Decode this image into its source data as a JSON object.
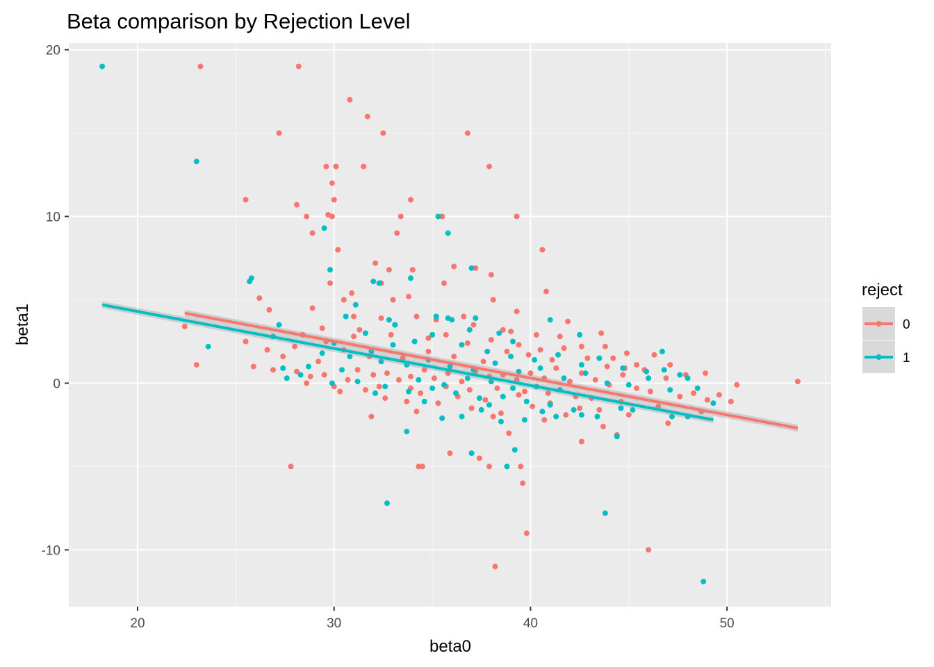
{
  "chart_data": {
    "type": "scatter",
    "title": "Beta comparison by Rejection Level",
    "xlabel": "beta0",
    "ylabel": "beta1",
    "xlim": [
      16.5,
      55.3
    ],
    "ylim": [
      -13.4,
      20.4
    ],
    "x_ticks": [
      20,
      30,
      40,
      50
    ],
    "y_ticks": [
      -10,
      0,
      10,
      20
    ],
    "x_tick_labels": [
      "20",
      "30",
      "40",
      "50"
    ],
    "y_tick_labels": [
      "-10",
      "0",
      "10",
      "20"
    ],
    "grid": true,
    "panel_background": "#ebebeb",
    "legend": {
      "title": "reject",
      "position": "right",
      "entries": [
        "0",
        "1"
      ]
    },
    "series": [
      {
        "name": "0",
        "color": "#F8766D",
        "trend": {
          "x": [
            22.4,
            53.6
          ],
          "y": [
            4.2,
            -2.7
          ]
        },
        "points": [
          [
            23.2,
            19.0
          ],
          [
            28.2,
            19.0
          ],
          [
            30.8,
            17.0
          ],
          [
            31.7,
            16.0
          ],
          [
            27.2,
            15.0
          ],
          [
            32.5,
            15.0
          ],
          [
            36.8,
            15.0
          ],
          [
            29.6,
            13.0
          ],
          [
            30.1,
            13.0
          ],
          [
            31.5,
            13.0
          ],
          [
            37.9,
            13.0
          ],
          [
            29.9,
            12.0
          ],
          [
            30.0,
            11.0
          ],
          [
            25.5,
            11.0
          ],
          [
            33.9,
            11.0
          ],
          [
            28.1,
            10.7
          ],
          [
            29.7,
            10.1
          ],
          [
            28.6,
            10.0
          ],
          [
            29.9,
            10.0
          ],
          [
            33.4,
            10.0
          ],
          [
            35.5,
            10.0
          ],
          [
            39.3,
            10.0
          ],
          [
            28.9,
            9.0
          ],
          [
            33.2,
            9.0
          ],
          [
            30.2,
            8.0
          ],
          [
            40.6,
            8.0
          ],
          [
            36.1,
            7.0
          ],
          [
            32.1,
            7.2
          ],
          [
            37.2,
            6.9
          ],
          [
            34.0,
            6.8
          ],
          [
            32.8,
            6.8
          ],
          [
            29.8,
            6.0
          ],
          [
            32.4,
            6.0
          ],
          [
            35.6,
            6.0
          ],
          [
            38.0,
            6.5
          ],
          [
            40.8,
            5.5
          ],
          [
            30.9,
            5.4
          ],
          [
            33.0,
            5.0
          ],
          [
            33.8,
            5.2
          ],
          [
            38.1,
            5.0
          ],
          [
            26.2,
            5.1
          ],
          [
            30.5,
            5.0
          ],
          [
            28.9,
            4.5
          ],
          [
            26.7,
            4.4
          ],
          [
            39.3,
            4.3
          ],
          [
            32.4,
            3.9
          ],
          [
            36.6,
            4.0
          ],
          [
            41.9,
            3.7
          ],
          [
            35.2,
            3.8
          ],
          [
            34.2,
            4.0
          ],
          [
            37.1,
            3.5
          ],
          [
            39.0,
            3.1
          ],
          [
            40.3,
            2.9
          ],
          [
            43.6,
            3.0
          ],
          [
            29.4,
            3.3
          ],
          [
            31.3,
            3.2
          ],
          [
            28.4,
            2.9
          ],
          [
            35.7,
            2.9
          ],
          [
            38.6,
            3.2
          ],
          [
            41.5,
            2.8
          ],
          [
            22.4,
            3.4
          ],
          [
            25.5,
            2.5
          ],
          [
            44.9,
            1.8
          ],
          [
            26.6,
            2.0
          ],
          [
            42.6,
            2.2
          ],
          [
            43.8,
            2.2
          ],
          [
            46.3,
            1.7
          ],
          [
            44.2,
            1.5
          ],
          [
            47.1,
            1.1
          ],
          [
            45.4,
            1.1
          ],
          [
            44.8,
            0.9
          ],
          [
            25.9,
            1.0
          ],
          [
            23.0,
            1.1
          ],
          [
            26.9,
            0.8
          ],
          [
            28.1,
            0.7
          ],
          [
            30.7,
            0.2
          ],
          [
            28.8,
            0.4
          ],
          [
            29.5,
            0.5
          ],
          [
            31.2,
            0.8
          ],
          [
            32.0,
            0.5
          ],
          [
            32.7,
            0.6
          ],
          [
            33.3,
            0.2
          ],
          [
            33.9,
            0.4
          ],
          [
            34.6,
            0.8
          ],
          [
            35.1,
            0.3
          ],
          [
            35.8,
            0.6
          ],
          [
            36.5,
            0.1
          ],
          [
            37.2,
            0.7
          ],
          [
            37.9,
            0.4
          ],
          [
            38.6,
            0.5
          ],
          [
            39.3,
            0.2
          ],
          [
            40.0,
            0.6
          ],
          [
            40.7,
            0.3
          ],
          [
            41.3,
            0.9
          ],
          [
            42.0,
            0.1
          ],
          [
            42.6,
            0.6
          ],
          [
            43.3,
            0.2
          ],
          [
            44.0,
            -0.1
          ],
          [
            44.7,
            0.5
          ],
          [
            45.4,
            -0.3
          ],
          [
            46.1,
            -0.5
          ],
          [
            46.9,
            0.3
          ],
          [
            47.6,
            -0.8
          ],
          [
            48.3,
            -0.6
          ],
          [
            49.0,
            -1.0
          ],
          [
            49.6,
            -0.7
          ],
          [
            50.2,
            -1.1
          ],
          [
            50.5,
            -0.1
          ],
          [
            53.6,
            0.1
          ],
          [
            31.6,
            -0.4
          ],
          [
            32.6,
            -0.9
          ],
          [
            33.7,
            -1.1
          ],
          [
            34.4,
            -0.6
          ],
          [
            35.3,
            -1.2
          ],
          [
            36.3,
            -0.8
          ],
          [
            37.0,
            -1.5
          ],
          [
            37.7,
            -1.0
          ],
          [
            38.5,
            -1.8
          ],
          [
            39.4,
            -0.7
          ],
          [
            40.1,
            -1.4
          ],
          [
            41.0,
            -1.2
          ],
          [
            41.8,
            -1.9
          ],
          [
            42.5,
            -1.5
          ],
          [
            43.5,
            -1.6
          ],
          [
            45.0,
            -1.9
          ],
          [
            47.0,
            -2.4
          ],
          [
            30.3,
            -0.5
          ],
          [
            31.9,
            -2.0
          ],
          [
            34.2,
            -1.7
          ],
          [
            35.5,
            -2.1
          ],
          [
            38.1,
            -2.0
          ],
          [
            38.9,
            -3.0
          ],
          [
            42.6,
            -3.5
          ],
          [
            40.7,
            -2.2
          ],
          [
            43.7,
            -2.6
          ],
          [
            44.4,
            -3.1
          ],
          [
            27.8,
            -5.0
          ],
          [
            34.3,
            -5.0
          ],
          [
            37.9,
            -5.0
          ],
          [
            39.5,
            -5.0
          ],
          [
            34.5,
            -5.0
          ],
          [
            39.6,
            -6.0
          ],
          [
            39.8,
            -9.0
          ],
          [
            38.2,
            -11.0
          ],
          [
            46.0,
            -10.0
          ],
          [
            35.9,
            -4.2
          ],
          [
            37.4,
            -4.5
          ],
          [
            33.5,
            1.5
          ],
          [
            34.8,
            1.9
          ],
          [
            36.1,
            1.6
          ],
          [
            37.6,
            1.3
          ],
          [
            38.8,
            1.9
          ],
          [
            39.9,
            1.7
          ],
          [
            41.1,
            1.4
          ],
          [
            31.8,
            1.6
          ],
          [
            30.5,
            2.0
          ],
          [
            29.2,
            1.3
          ],
          [
            27.4,
            1.6
          ],
          [
            28.6,
            0.0
          ],
          [
            30.0,
            -0.2
          ],
          [
            32.3,
            -0.2
          ],
          [
            33.9,
            -0.3
          ],
          [
            35.7,
            -0.2
          ],
          [
            36.9,
            -0.4
          ],
          [
            38.3,
            -0.3
          ],
          [
            39.7,
            -0.5
          ],
          [
            40.9,
            -0.6
          ],
          [
            42.3,
            -0.8
          ],
          [
            43.1,
            -0.9
          ],
          [
            44.6,
            -1.1
          ],
          [
            46.5,
            -1.4
          ],
          [
            48.7,
            -1.7
          ],
          [
            34.8,
            2.7
          ],
          [
            36.8,
            2.4
          ],
          [
            38.0,
            2.6
          ],
          [
            39.4,
            2.3
          ],
          [
            40.5,
            2.0
          ],
          [
            41.7,
            2.1
          ],
          [
            42.9,
            1.5
          ],
          [
            43.9,
            1.0
          ],
          [
            45.8,
            0.8
          ],
          [
            47.9,
            0.5
          ],
          [
            48.9,
            0.6
          ],
          [
            32.9,
            2.9
          ],
          [
            31.0,
            2.8
          ],
          [
            29.6,
            2.5
          ],
          [
            28.0,
            2.2
          ],
          [
            33.1,
            3.5
          ],
          [
            31.0,
            4.0
          ]
        ]
      },
      {
        "name": "1",
        "color": "#00BFC4",
        "trend": {
          "x": [
            18.2,
            49.3
          ],
          "y": [
            4.7,
            -2.2
          ]
        },
        "points": [
          [
            18.2,
            19.0
          ],
          [
            23.0,
            13.3
          ],
          [
            35.3,
            10.0
          ],
          [
            35.8,
            9.0
          ],
          [
            29.5,
            9.3
          ],
          [
            37.0,
            6.9
          ],
          [
            29.8,
            6.8
          ],
          [
            25.7,
            6.1
          ],
          [
            25.8,
            6.3
          ],
          [
            33.9,
            6.3
          ],
          [
            32.0,
            6.1
          ],
          [
            32.3,
            6.0
          ],
          [
            31.1,
            4.7
          ],
          [
            35.2,
            4.0
          ],
          [
            35.8,
            3.9
          ],
          [
            36.0,
            3.8
          ],
          [
            37.2,
            3.9
          ],
          [
            41.0,
            3.8
          ],
          [
            27.2,
            3.5
          ],
          [
            30.6,
            4.0
          ],
          [
            32.8,
            3.8
          ],
          [
            33.1,
            3.5
          ],
          [
            38.4,
            3.0
          ],
          [
            31.6,
            3.0
          ],
          [
            23.6,
            2.2
          ],
          [
            26.9,
            2.8
          ],
          [
            35.0,
            2.9
          ],
          [
            36.9,
            3.2
          ],
          [
            39.1,
            2.5
          ],
          [
            42.5,
            2.9
          ],
          [
            29.4,
            1.8
          ],
          [
            30.8,
            1.6
          ],
          [
            32.4,
            1.3
          ],
          [
            33.7,
            1.1
          ],
          [
            34.8,
            1.4
          ],
          [
            35.9,
            1.0
          ],
          [
            37.1,
            0.8
          ],
          [
            38.2,
            1.2
          ],
          [
            39.4,
            0.7
          ],
          [
            40.5,
            0.9
          ],
          [
            41.7,
            0.3
          ],
          [
            42.8,
            0.6
          ],
          [
            43.9,
            0.0
          ],
          [
            45.0,
            -0.1
          ],
          [
            46.0,
            0.3
          ],
          [
            46.8,
            0.8
          ],
          [
            47.6,
            0.5
          ],
          [
            48.0,
            0.3
          ],
          [
            48.5,
            -0.3
          ],
          [
            49.3,
            -1.2
          ],
          [
            46.7,
            1.9
          ],
          [
            47.1,
            -0.4
          ],
          [
            27.4,
            0.9
          ],
          [
            27.6,
            0.3
          ],
          [
            28.3,
            0.5
          ],
          [
            29.9,
            0.0
          ],
          [
            31.2,
            0.1
          ],
          [
            32.6,
            -0.2
          ],
          [
            33.8,
            -0.5
          ],
          [
            35.0,
            -0.3
          ],
          [
            36.2,
            -0.6
          ],
          [
            37.4,
            -0.9
          ],
          [
            38.6,
            -0.8
          ],
          [
            39.8,
            -1.1
          ],
          [
            41.0,
            -1.3
          ],
          [
            42.2,
            -1.6
          ],
          [
            43.4,
            -2.0
          ],
          [
            44.6,
            -1.5
          ],
          [
            45.2,
            -1.6
          ],
          [
            47.2,
            -2.0
          ],
          [
            48.0,
            -2.0
          ],
          [
            35.5,
            -2.1
          ],
          [
            36.5,
            -2.0
          ],
          [
            37.5,
            -1.6
          ],
          [
            38.5,
            -2.3
          ],
          [
            39.7,
            -2.2
          ],
          [
            41.3,
            -2.0
          ],
          [
            42.6,
            -1.9
          ],
          [
            44.4,
            -3.2
          ],
          [
            33.7,
            -2.9
          ],
          [
            37.0,
            -4.2
          ],
          [
            39.2,
            -4.0
          ],
          [
            38.8,
            -5.0
          ],
          [
            32.7,
            -7.2
          ],
          [
            43.8,
            -7.8
          ],
          [
            48.8,
            -11.9
          ],
          [
            30.4,
            0.8
          ],
          [
            31.9,
            1.9
          ],
          [
            33.0,
            2.3
          ],
          [
            34.1,
            2.5
          ],
          [
            36.5,
            2.3
          ],
          [
            37.8,
            1.9
          ],
          [
            39.0,
            1.6
          ],
          [
            40.2,
            1.4
          ],
          [
            41.4,
            1.7
          ],
          [
            42.6,
            1.1
          ],
          [
            43.5,
            1.5
          ],
          [
            44.7,
            0.9
          ],
          [
            45.9,
            0.7
          ],
          [
            34.3,
            0.2
          ],
          [
            35.6,
            -0.1
          ],
          [
            36.8,
            0.3
          ],
          [
            38.0,
            0.1
          ],
          [
            39.1,
            -0.3
          ],
          [
            40.3,
            -0.2
          ],
          [
            41.5,
            -0.4
          ],
          [
            28.7,
            1.0
          ],
          [
            30.0,
            2.4
          ],
          [
            32.1,
            -0.6
          ],
          [
            34.6,
            -1.1
          ],
          [
            37.9,
            -1.3
          ],
          [
            40.6,
            -1.7
          ]
        ]
      }
    ]
  }
}
